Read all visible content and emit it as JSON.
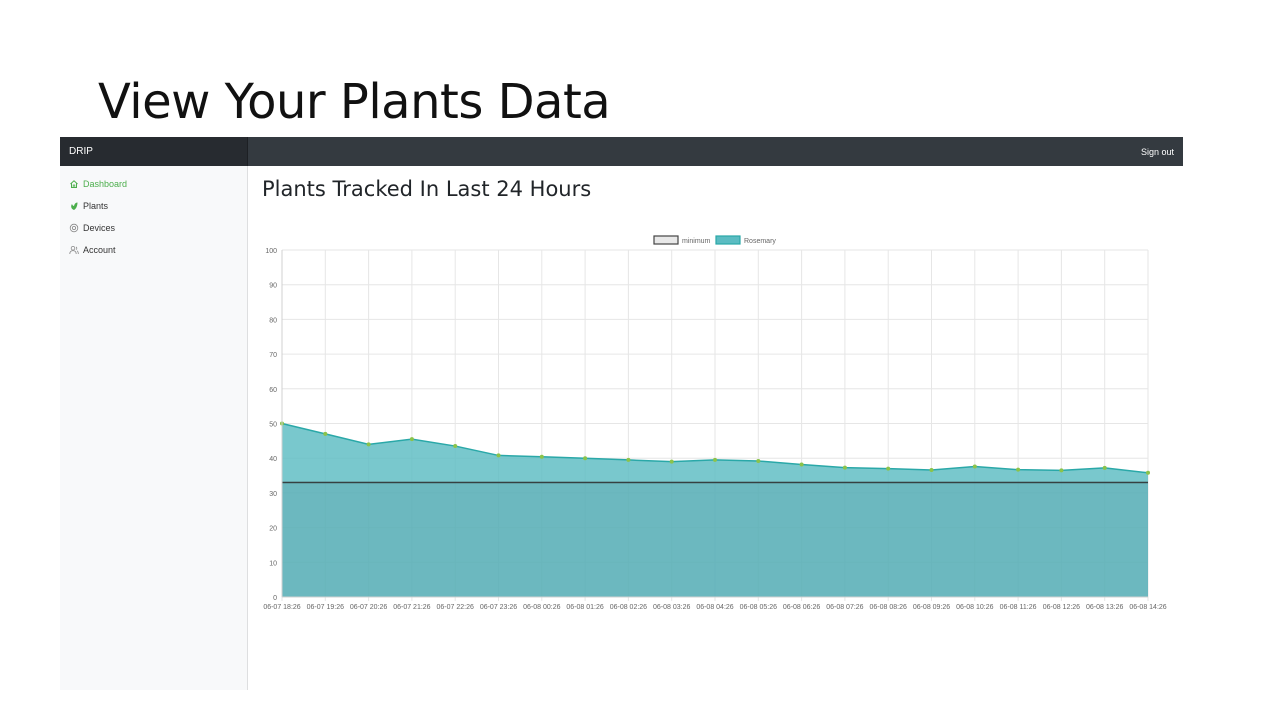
{
  "slide": {
    "title": "View Your Plants Data"
  },
  "navbar": {
    "brand": "DRIP",
    "signout_label": "Sign out"
  },
  "sidebar": {
    "items": [
      {
        "label": "Dashboard",
        "icon": "home-icon",
        "active": true
      },
      {
        "label": "Plants",
        "icon": "plant-icon",
        "active": false
      },
      {
        "label": "Devices",
        "icon": "device-icon",
        "active": false
      },
      {
        "label": "Account",
        "icon": "users-icon",
        "active": false
      }
    ]
  },
  "main": {
    "title": "Plants Tracked In Last 24 Hours"
  },
  "colors": {
    "active_nav": "#4cae4c",
    "area_fill": "#5bbcc2",
    "area_line": "#2aa8a8",
    "point": "#8bc34a",
    "minimum_line": "#333333"
  },
  "chart_data": {
    "type": "area",
    "x": [
      "06-07 18:26",
      "06-07 19:26",
      "06-07 20:26",
      "06-07 21:26",
      "06-07 22:26",
      "06-07 23:26",
      "06-08 00:26",
      "06-08 01:26",
      "06-08 02:26",
      "06-08 03:26",
      "06-08 04:26",
      "06-08 05:26",
      "06-08 06:26",
      "06-08 07:26",
      "06-08 08:26",
      "06-08 09:26",
      "06-08 10:26",
      "06-08 11:26",
      "06-08 12:26",
      "06-08 13:26",
      "06-08 14:26"
    ],
    "series": [
      {
        "name": "minimum",
        "values": [
          33,
          33,
          33,
          33,
          33,
          33,
          33,
          33,
          33,
          33,
          33,
          33,
          33,
          33,
          33,
          33,
          33,
          33,
          33,
          33,
          33
        ]
      },
      {
        "name": "Rosemary",
        "values": [
          50,
          47,
          44,
          45.5,
          43.5,
          40.8,
          40.4,
          40,
          39.5,
          39,
          39.5,
          39.2,
          38.2,
          37.3,
          37,
          36.6,
          37.6,
          36.7,
          36.5,
          37.2,
          35.8
        ]
      }
    ],
    "ylim": [
      0,
      100
    ],
    "yticks": [
      0,
      10,
      20,
      30,
      40,
      50,
      60,
      70,
      80,
      90,
      100
    ],
    "grid": true,
    "legend_position": "top-center"
  }
}
